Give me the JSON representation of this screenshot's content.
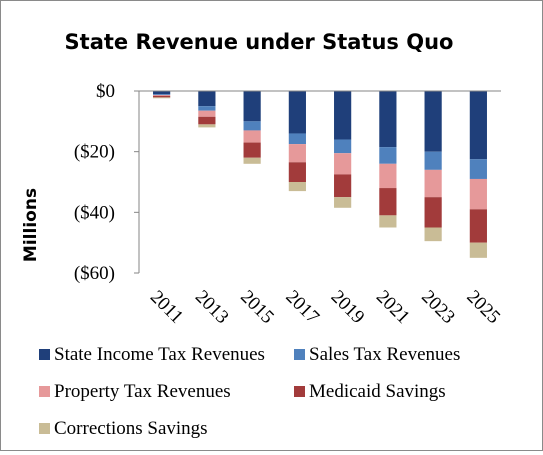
{
  "chart_data": {
    "type": "bar",
    "stacked": true,
    "title": "State Revenue under Status Quo",
    "ylabel": "Millions",
    "xlabel": "",
    "ylim": [
      -60,
      0
    ],
    "yticks": [
      0,
      -20,
      -40,
      -60
    ],
    "ytick_labels": [
      "$0",
      "($20)",
      "($40)",
      "($60)"
    ],
    "grid": false,
    "legend_position": "bottom",
    "categories": [
      "2011",
      "2013",
      "2015",
      "2017",
      "2019",
      "2021",
      "2023",
      "2025"
    ],
    "visible_tick_labels": [
      "2011",
      "2013",
      "2015",
      "2017",
      "2019",
      "2021",
      "2023",
      "2025"
    ],
    "bar_positions": [
      2011,
      2012.5,
      2014,
      2015.5,
      2017,
      2018.5,
      2020,
      2021.5
    ],
    "series": [
      {
        "name": "State Income Tax Revenues",
        "color": "#1f3f7a",
        "values": [
          -1.0,
          -5.0,
          -10.0,
          -14.0,
          -16.0,
          -18.5,
          -20.0,
          -22.5
        ]
      },
      {
        "name": "Sales Tax Revenues",
        "color": "#4f81bd",
        "values": [
          -0.3,
          -1.5,
          -3.0,
          -3.5,
          -4.5,
          -5.5,
          -6.0,
          -6.5
        ]
      },
      {
        "name": "Property Tax Revenues",
        "color": "#e6999a",
        "values": [
          -0.3,
          -2.0,
          -4.0,
          -6.0,
          -7.0,
          -8.0,
          -9.0,
          -10.0
        ]
      },
      {
        "name": "Medicaid Savings",
        "color": "#a23b3b",
        "values": [
          -0.5,
          -2.5,
          -5.0,
          -6.5,
          -7.5,
          -9.0,
          -10.0,
          -11.0
        ]
      },
      {
        "name": "Corrections Savings",
        "color": "#c9bc96",
        "values": [
          -0.3,
          -1.0,
          -2.0,
          -3.0,
          -3.5,
          -4.0,
          -4.5,
          -5.0
        ]
      }
    ]
  }
}
